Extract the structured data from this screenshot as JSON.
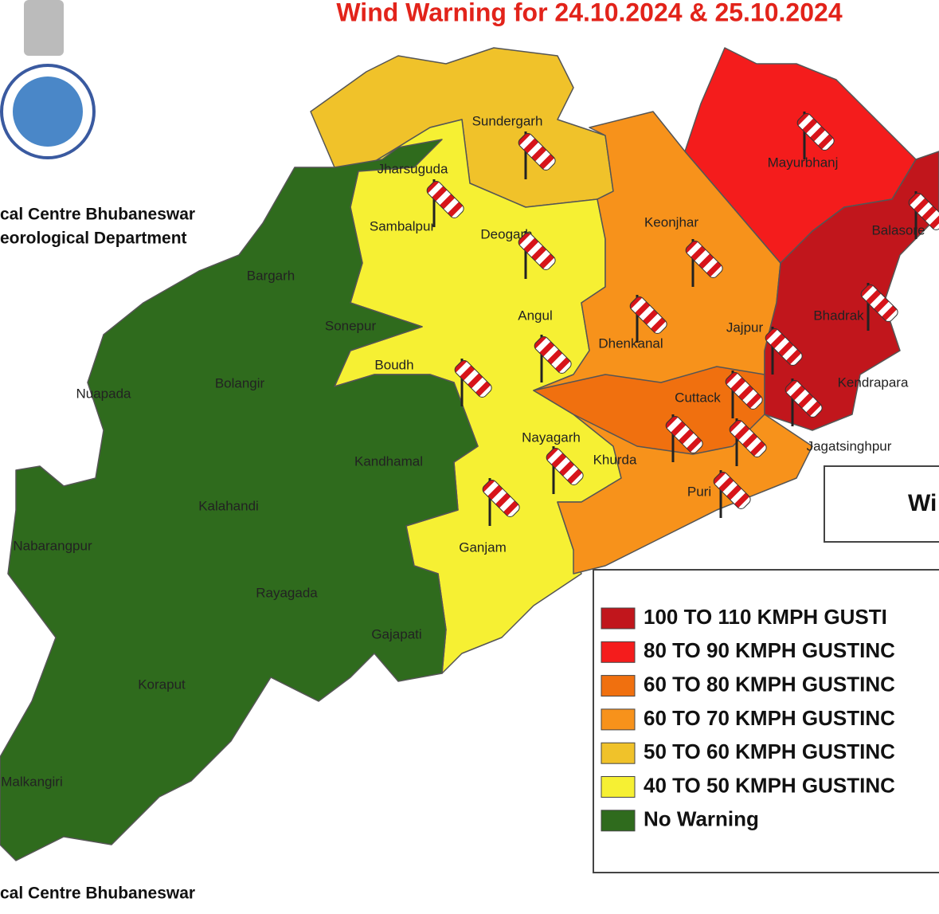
{
  "header": {
    "title": "Wind Warning for 24.10.2024 & 25.10.2024",
    "org_line1": "cal Centre Bhubaneswar",
    "org_line2": "eorological Department"
  },
  "districts": [
    "Sundergarh",
    "Mayurbhanj",
    "Jharsuguda",
    "Sambalpur",
    "Deogarh",
    "Keonjhar",
    "Balasore",
    "Bargarh",
    "Sonepur",
    "Angul",
    "Bhadrak",
    "Dhenkanal",
    "Jajpur",
    "Boudh",
    "Bolangir",
    "Nuapada",
    "Kendrapara",
    "Cuttack",
    "Nayagarh",
    "Jagatsinghpur",
    "Khurda",
    "Kandhamal",
    "Puri",
    "Kalahandi",
    "Ganjam",
    "Nabarangpur",
    "Rayagada",
    "Gajapati",
    "Koraput",
    "Malkangiri"
  ],
  "legend": {
    "items": [
      {
        "label": "100 TO 110 KMPH GUSTI",
        "color": "#c1161c"
      },
      {
        "label": "80 TO 90 KMPH GUSTINC",
        "color": "#f41c1c"
      },
      {
        "label": "60 TO 80 KMPH GUSTINC",
        "color": "#f0700f"
      },
      {
        "label": "60 TO 70 KMPH GUSTINC",
        "color": "#f7921b"
      },
      {
        "label": "50 TO 60 KMPH GUSTINC",
        "color": "#f0c22a"
      },
      {
        "label": "40 TO 50 KMPH GUSTINC",
        "color": "#f6f033"
      },
      {
        "label": "No Warning",
        "color": "#2f6b1d"
      }
    ]
  },
  "wind_legend_label": "Wi",
  "footer": "cal Centre Bhubaneswar"
}
